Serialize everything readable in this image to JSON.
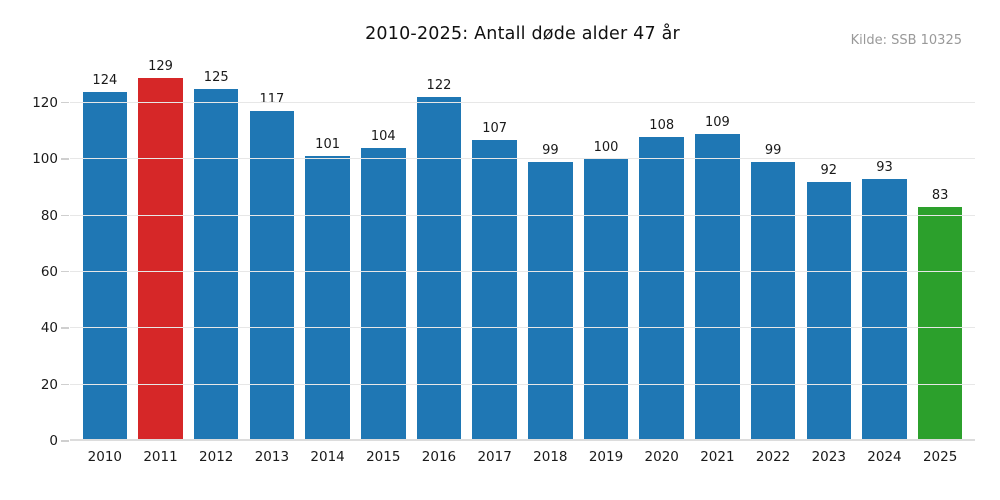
{
  "header": {
    "title": "2010-2025: Antall døde alder 47 år",
    "source_note": "Kilde: SSB 10325"
  },
  "chart_data": {
    "type": "bar",
    "title": "2010-2025: Antall døde alder 47 år",
    "source_note": "Kilde: SSB 10325",
    "categories": [
      "2010",
      "2011",
      "2012",
      "2013",
      "2014",
      "2015",
      "2016",
      "2017",
      "2018",
      "2019",
      "2020",
      "2021",
      "2022",
      "2023",
      "2024",
      "2025"
    ],
    "values": [
      124,
      129,
      125,
      117,
      101,
      104,
      122,
      107,
      99,
      100,
      108,
      109,
      99,
      92,
      93,
      83
    ],
    "bar_colors": [
      "#1f77b4",
      "#d62728",
      "#1f77b4",
      "#1f77b4",
      "#1f77b4",
      "#1f77b4",
      "#1f77b4",
      "#1f77b4",
      "#1f77b4",
      "#1f77b4",
      "#1f77b4",
      "#1f77b4",
      "#1f77b4",
      "#1f77b4",
      "#1f77b4",
      "#2ca02c"
    ],
    "colors": {
      "default_bar": "#1f77b4",
      "highlight_2011": "#d62728",
      "highlight_2025": "#2ca02c",
      "gridline": "#e7e7e7",
      "source_text": "#999999"
    },
    "xlabel": "",
    "ylabel": "",
    "y_ticks": [
      0,
      20,
      40,
      60,
      80,
      100,
      120
    ],
    "ylim": [
      0,
      135.6
    ],
    "grid": true,
    "legend": "none",
    "value_labels": "above bars"
  }
}
